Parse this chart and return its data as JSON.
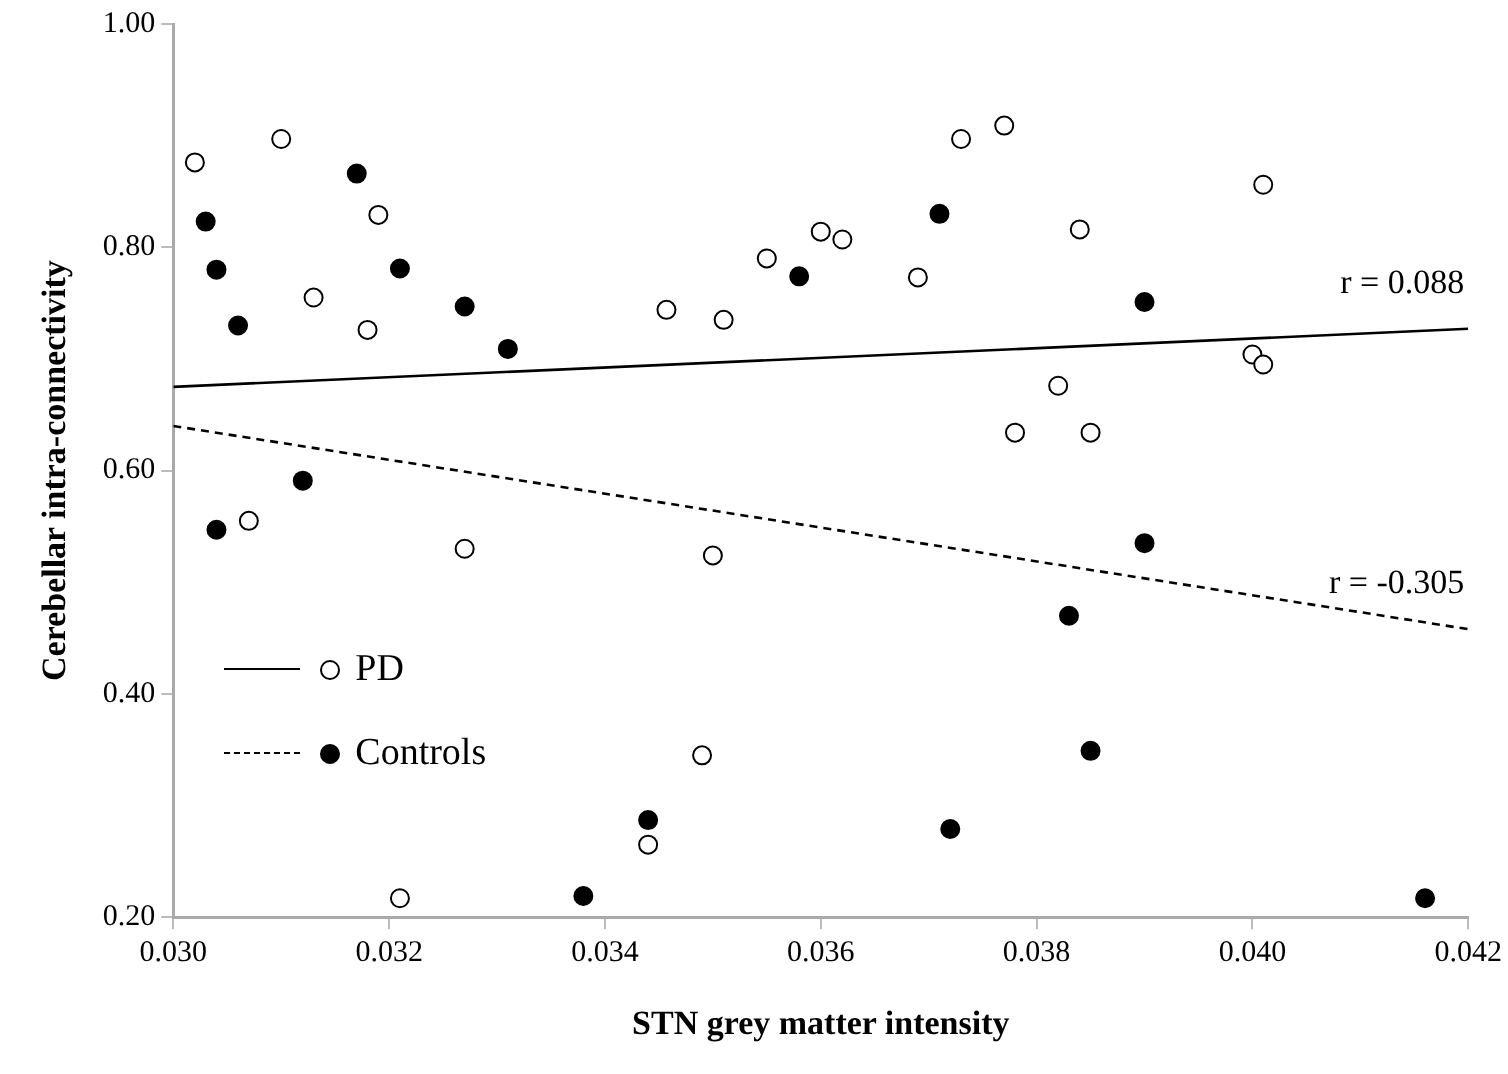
{
  "chart_data": {
    "type": "scatter",
    "xlabel": "STN grey matter intensity",
    "ylabel": "Cerebellar intra-connectivity",
    "xlim": [
      0.03,
      0.042
    ],
    "xticks": [
      {
        "value": 0.03,
        "label": "0.030"
      },
      {
        "value": 0.032,
        "label": "0.032"
      },
      {
        "value": 0.034,
        "label": "0.034"
      },
      {
        "value": 0.036,
        "label": "0.036"
      },
      {
        "value": 0.038,
        "label": "0.038"
      },
      {
        "value": 0.04,
        "label": "0.040"
      },
      {
        "value": 0.042,
        "label": "0.042"
      }
    ],
    "ylim": [
      0.2,
      1.0
    ],
    "yticks": [
      {
        "value": 0.2,
        "label": "0.20"
      },
      {
        "value": 0.4,
        "label": "0.40"
      },
      {
        "value": 0.6,
        "label": "0.60"
      },
      {
        "value": 0.8,
        "label": "0.80"
      },
      {
        "value": 1.0,
        "label": "1.00"
      }
    ],
    "grid": false,
    "legend": "bottom left",
    "marker": "circle",
    "series": [
      {
        "name": "PD",
        "type": "scatter",
        "color": "#ffffff",
        "x": [
          0.0302,
          0.031,
          0.0319,
          0.0313,
          0.0318,
          0.03457,
          0.0351,
          0.0355,
          0.0307,
          0.036,
          0.0362,
          0.0373,
          0.0377,
          0.0369,
          0.0384,
          0.0401,
          0.04,
          0.0401,
          0.0382,
          0.0378,
          0.0385,
          0.0327,
          0.035,
          0.0349,
          0.0344,
          0.0321
        ],
        "values": [
          0.876,
          0.897,
          0.829,
          0.755,
          0.726,
          0.744,
          0.735,
          0.79,
          0.555,
          0.814,
          0.807,
          0.897,
          0.909,
          0.773,
          0.816,
          0.856,
          0.704,
          0.695,
          0.676,
          0.634,
          0.634,
          0.53,
          0.524,
          0.345,
          0.265,
          0.217
        ]
      },
      {
        "name": "Controls",
        "type": "scatter",
        "color": "#000000",
        "x": [
          0.0317,
          0.0303,
          0.0304,
          0.0321,
          0.0327,
          0.0306,
          0.0331,
          0.0358,
          0.0312,
          0.0371,
          0.039,
          0.0304,
          0.0344,
          0.0338,
          0.039,
          0.0383,
          0.0385,
          0.0372,
          0.0416
        ],
        "values": [
          0.866,
          0.823,
          0.78,
          0.781,
          0.747,
          0.73,
          0.709,
          0.774,
          0.591,
          0.83,
          0.751,
          0.547,
          0.287,
          0.219,
          0.535,
          0.47,
          0.349,
          0.279,
          0.217
        ]
      },
      {
        "type": "line",
        "color": "#000000",
        "line_style": "solid",
        "marker": "none",
        "x": [
          0.03,
          0.042
        ],
        "values": [
          0.675,
          0.727
        ]
      },
      {
        "type": "line",
        "color": "#000000",
        "line_style": "dashed",
        "marker": "none",
        "x": [
          0.03,
          0.042
        ],
        "values": [
          0.64,
          0.458
        ]
      }
    ],
    "annotations": [
      "r = 0.088",
      "r = -0.305"
    ]
  }
}
